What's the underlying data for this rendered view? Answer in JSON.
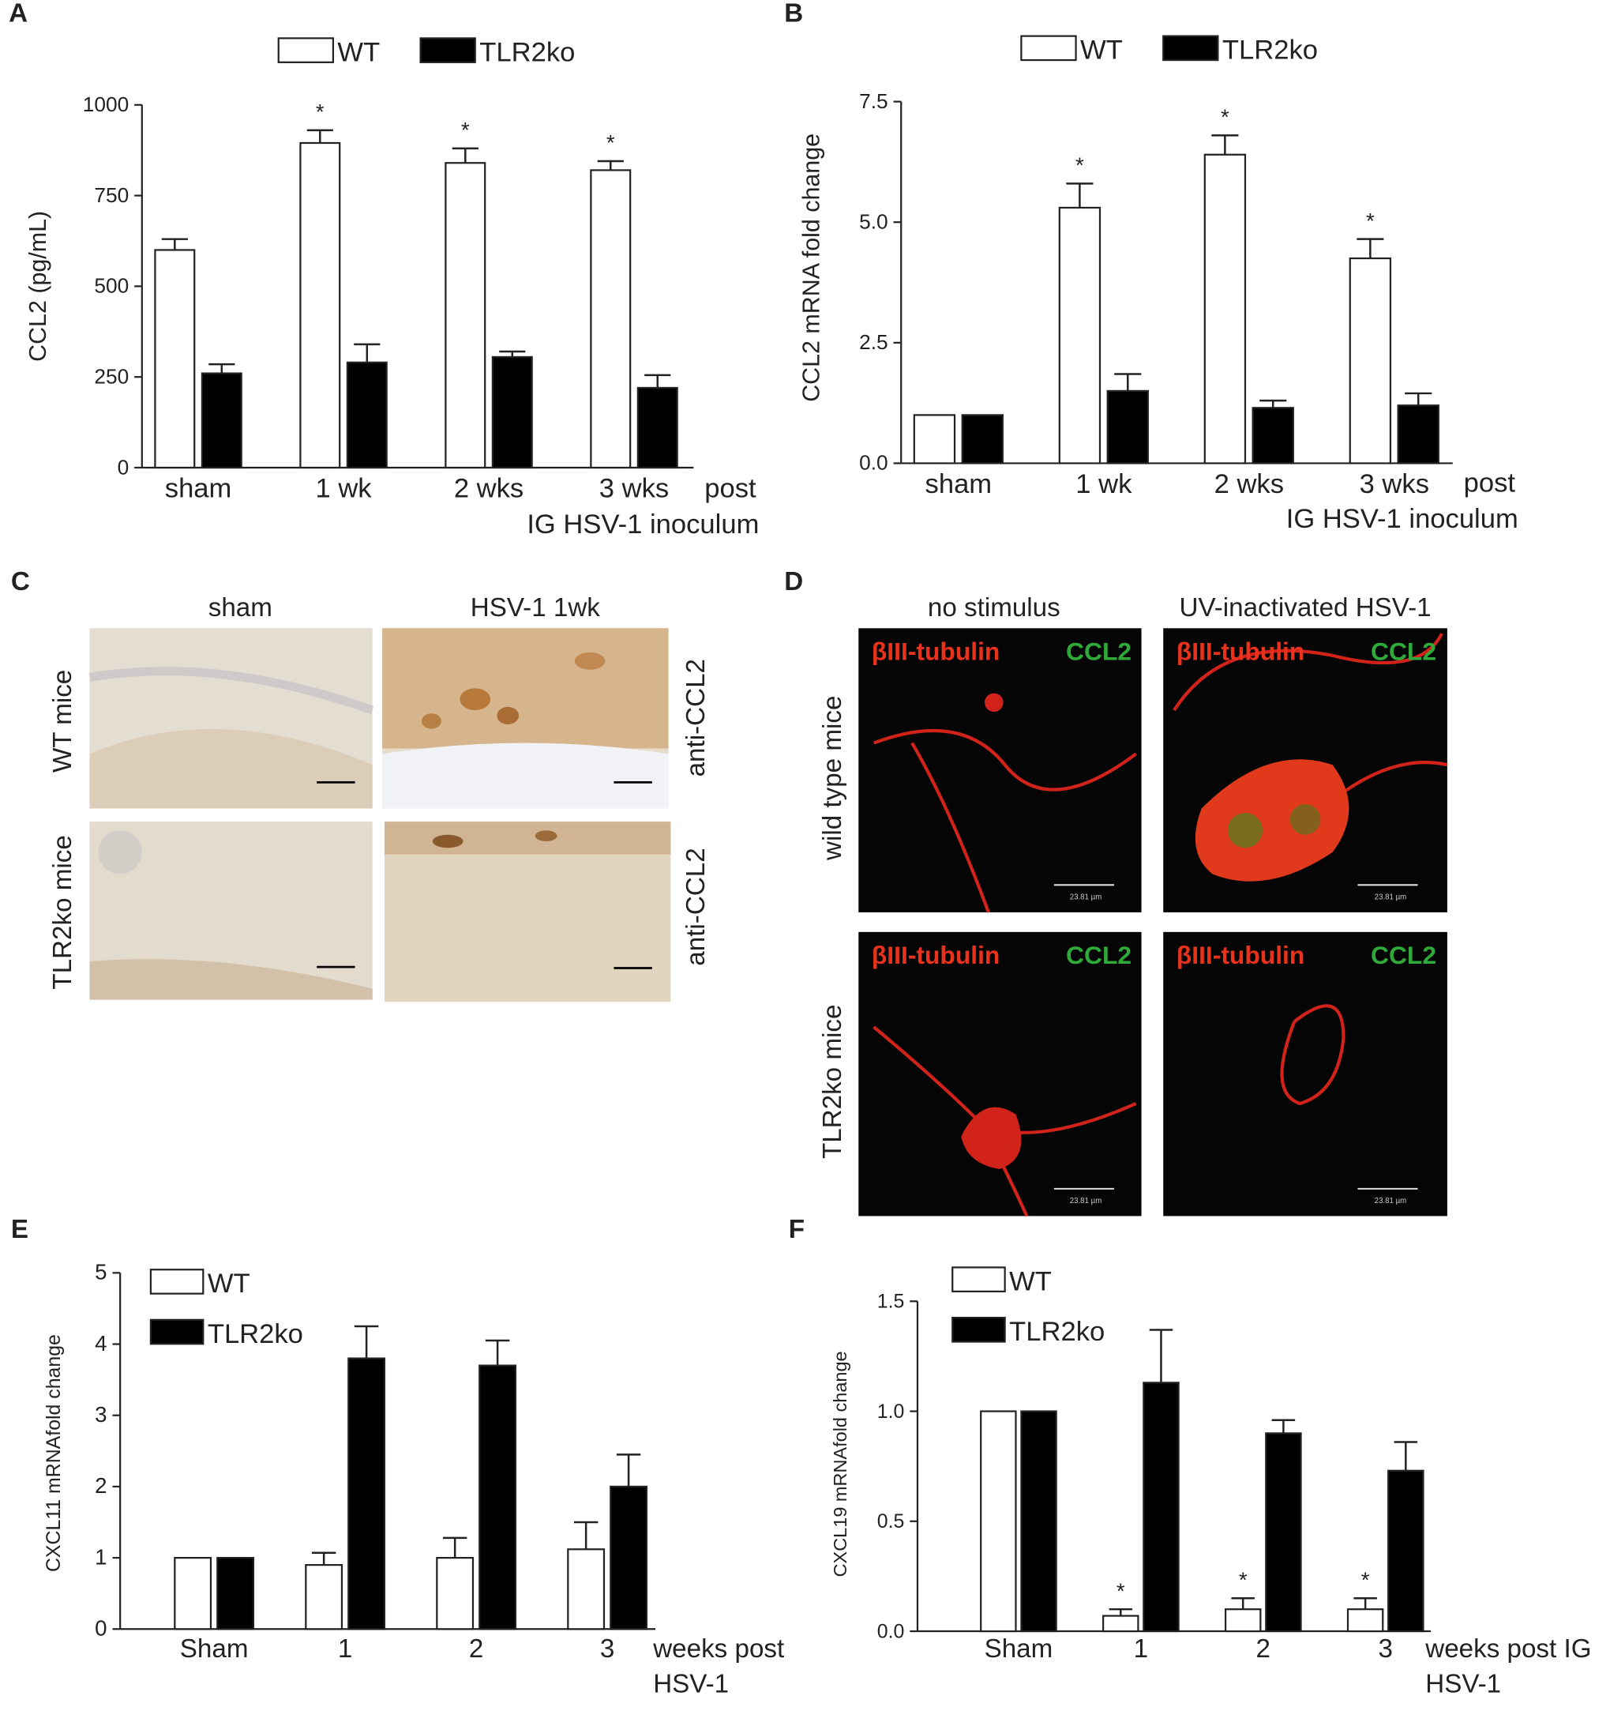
{
  "chart_data": [
    {
      "type": "bar",
      "label": "A",
      "ylabel": "CCL2 (pg/mL)",
      "xlabel": [
        "post",
        "IG HSV-1 inoculum"
      ],
      "categories": [
        "sham",
        "1 wk",
        "2 wks",
        "3 wks"
      ],
      "ylim": [
        0,
        1000
      ],
      "yticks": [
        0,
        250,
        500,
        750,
        1000
      ],
      "series": [
        {
          "name": "WT",
          "color": "#ffffff",
          "values": [
            600,
            895,
            840,
            820
          ],
          "errors": [
            30,
            35,
            40,
            25
          ],
          "significance": [
            null,
            "*",
            "*",
            "*"
          ]
        },
        {
          "name": "TLR2ko",
          "color": "#000000",
          "values": [
            260,
            290,
            305,
            220
          ],
          "errors": [
            25,
            50,
            15,
            35
          ]
        }
      ]
    },
    {
      "type": "bar",
      "label": "B",
      "ylabel": "CCL2 mRNA fold change",
      "xlabel": [
        "post",
        "IG HSV-1 inoculum"
      ],
      "categories": [
        "sham",
        "1 wk",
        "2 wks",
        "3 wks"
      ],
      "ylim": [
        0,
        7.5
      ],
      "yticks": [
        {
          "value": 0,
          "label": "0.0"
        },
        {
          "value": 2.5,
          "label": "2.5"
        },
        {
          "value": 5,
          "label": "5.0"
        },
        {
          "value": 7.5,
          "label": "7.5"
        }
      ],
      "series": [
        {
          "name": "WT",
          "color": "#ffffff",
          "values": [
            1.0,
            5.3,
            6.4,
            4.25
          ],
          "errors": [
            0,
            0.5,
            0.4,
            0.4
          ],
          "significance": [
            null,
            "*",
            "*",
            "*"
          ]
        },
        {
          "name": "TLR2ko",
          "color": "#000000",
          "values": [
            1.0,
            1.5,
            1.15,
            1.2
          ],
          "errors": [
            0,
            0.35,
            0.15,
            0.25
          ]
        }
      ]
    },
    {
      "type": "bar",
      "label": "E",
      "ylabel": "CXCL11 mRNAfold change",
      "xlabel": [
        "weeks post",
        "HSV-1"
      ],
      "categories": [
        "Sham",
        "1",
        "2",
        "3"
      ],
      "ylim": [
        0,
        5
      ],
      "yticks": [
        0,
        1,
        2,
        3,
        4,
        5
      ],
      "series": [
        {
          "name": "WT",
          "color": "#ffffff",
          "values": [
            1.0,
            0.9,
            1.0,
            1.12
          ],
          "errors": [
            0,
            0.17,
            0.28,
            0.38
          ]
        },
        {
          "name": "TLR2ko",
          "color": "#000000",
          "values": [
            1.0,
            3.8,
            3.7,
            2.0
          ],
          "errors": [
            0,
            0.45,
            0.35,
            0.45
          ]
        }
      ]
    },
    {
      "type": "bar",
      "label": "F",
      "ylabel": "CXCL19 mRNAfold change",
      "xlabel": [
        "weeks post IG",
        "HSV-1"
      ],
      "categories": [
        "Sham",
        "1",
        "2",
        "3"
      ],
      "ylim": [
        0,
        1.5
      ],
      "yticks": [
        {
          "value": 0,
          "label": "0.0"
        },
        {
          "value": 0.5,
          "label": "0.5"
        },
        {
          "value": 1,
          "label": "1.0"
        },
        {
          "value": 1.5,
          "label": "1.5"
        }
      ],
      "series": [
        {
          "name": "WT",
          "color": "#ffffff",
          "values": [
            1.0,
            0.07,
            0.1,
            0.1
          ],
          "errors": [
            0,
            0.03,
            0.05,
            0.05
          ],
          "significance": [
            null,
            "*",
            "*",
            "*"
          ]
        },
        {
          "name": "TLR2ko",
          "color": "#000000",
          "values": [
            1.0,
            1.13,
            0.9,
            0.73
          ],
          "errors": [
            0,
            0.24,
            0.06,
            0.13
          ]
        }
      ]
    }
  ],
  "panels": [
    {
      "label": "C",
      "columns": [
        "sham",
        "HSV-1 1wk"
      ],
      "rows": [
        "WT mice",
        "TLR2ko mice"
      ],
      "row_notes": [
        "anti-CCL2",
        "anti-CCL2"
      ]
    },
    {
      "label": "D",
      "columns": [
        "no stimulus",
        "UV-inactivated HSV-1"
      ],
      "rows": [
        "wild type mice",
        "TLR2ko mice"
      ],
      "stains": [
        "βIII-tubulin",
        "CCL2"
      ],
      "scale_bar": "23.81 µm"
    }
  ]
}
